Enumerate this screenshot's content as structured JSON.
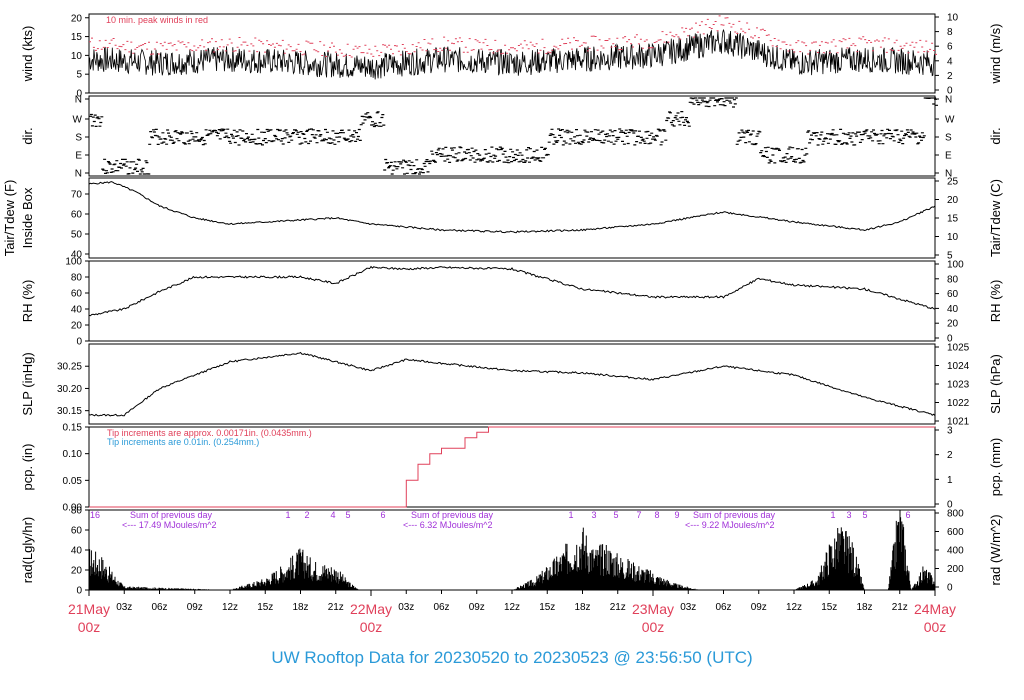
{
  "colors": {
    "red": "#e0405a",
    "blue": "#2b9ad8",
    "purple": "#a030d8",
    "black": "#000000"
  },
  "footer": {
    "prefix": "UW Rooftop Data for",
    "start": "20230520",
    "to": "to",
    "end": "20230523",
    "at": "@",
    "time": "23:56:50",
    "tz": "(UTC)"
  },
  "chart_data": [
    {
      "type": "line",
      "id": "wind",
      "ylabel": "wind (kts)",
      "ylabel2": "wind (m/s)",
      "ylim": [
        0,
        21
      ],
      "yticks": [
        0,
        5,
        10,
        15,
        20
      ],
      "y2ticks": [
        "0",
        "2",
        "4",
        "6",
        "8",
        "10"
      ],
      "annotations": [
        "10 min. peak winds in red"
      ],
      "series": [
        {
          "x_hours": [
            0,
            6,
            12,
            18,
            24,
            30,
            36,
            42,
            48,
            54,
            60,
            66,
            72
          ],
          "values": [
            9,
            8,
            9,
            8,
            7,
            9,
            8,
            9,
            10,
            14,
            8,
            9,
            8
          ]
        },
        {
          "x_hours": [
            0,
            6,
            12,
            18,
            24,
            30,
            36,
            42,
            48,
            54,
            60,
            66,
            72
          ],
          "values": [
            13,
            12,
            13,
            12,
            11,
            13,
            12,
            13,
            14,
            19,
            12,
            13,
            12
          ]
        }
      ]
    },
    {
      "type": "scatter",
      "id": "dir",
      "ylabel": "dir.",
      "ylabel2": "dir.",
      "yticks": [
        "N",
        "E",
        "S",
        "W",
        "N"
      ],
      "series": [
        {
          "x_hours": [
            0,
            2,
            4,
            6,
            8,
            10,
            12,
            14,
            16,
            18,
            20,
            22,
            24,
            26,
            28,
            30,
            32,
            34,
            36,
            38,
            40,
            42,
            44,
            46,
            48,
            50,
            52,
            54,
            56,
            58,
            60,
            62,
            64,
            66,
            68,
            70,
            72
          ],
          "values": [
            "W",
            "N",
            "N",
            "S",
            "S",
            "S",
            "S",
            "S",
            "S",
            "S",
            "S",
            "S",
            "W",
            "N",
            "N",
            "E",
            "E",
            "E",
            "E",
            "E",
            "S",
            "S",
            "S",
            "S",
            "S",
            "W",
            "N",
            "N",
            "S",
            "E",
            "E",
            "S",
            "S",
            "S",
            "S",
            "S",
            "N"
          ]
        }
      ]
    },
    {
      "type": "line",
      "id": "temp",
      "ylabel": "Inside Box",
      "ylabel_outer": "Tair/Tdew (F)",
      "ylabel2": "Tair/Tdew (C)",
      "ylim": [
        38,
        78
      ],
      "yticks": [
        40,
        50,
        60,
        70
      ],
      "y2ticks": [
        "5",
        "10",
        "15",
        "20",
        "25"
      ],
      "series": [
        {
          "x_hours": [
            0,
            2,
            4,
            6,
            9,
            12,
            18,
            21,
            24,
            30,
            36,
            42,
            48,
            54,
            60,
            66,
            69,
            72
          ],
          "values": [
            75,
            76,
            71,
            64,
            58,
            55,
            57,
            58,
            55,
            52,
            51,
            52,
            55,
            61,
            56,
            52,
            56,
            64
          ]
        }
      ]
    },
    {
      "type": "line",
      "id": "rh",
      "ylabel": "RH (%)",
      "ylabel2": "RH (%)",
      "ylim": [
        0,
        100
      ],
      "yticks": [
        0,
        20,
        40,
        60,
        80,
        100
      ],
      "y2ticks": [
        "0",
        "20",
        "40",
        "60",
        "80",
        "100"
      ],
      "series": [
        {
          "x_hours": [
            0,
            3,
            6,
            9,
            12,
            18,
            21,
            24,
            27,
            30,
            36,
            42,
            48,
            54,
            57,
            60,
            66,
            72
          ],
          "values": [
            32,
            40,
            62,
            80,
            80,
            80,
            72,
            92,
            90,
            92,
            90,
            65,
            55,
            55,
            78,
            70,
            65,
            40
          ]
        }
      ]
    },
    {
      "type": "line",
      "id": "slp",
      "ylabel": "SLP (inHg)",
      "ylabel2": "SLP (hPa)",
      "ylim": [
        30.12,
        30.3
      ],
      "yticks": [
        30.15,
        30.2,
        30.25
      ],
      "y2ticks": [
        "1021",
        "1022",
        "1023",
        "1024",
        "1025"
      ],
      "series": [
        {
          "x_hours": [
            0,
            3,
            6,
            12,
            18,
            24,
            27,
            36,
            42,
            48,
            54,
            60,
            66,
            72
          ],
          "values": [
            30.14,
            30.14,
            30.2,
            30.26,
            30.28,
            30.24,
            30.265,
            30.24,
            30.235,
            30.22,
            30.25,
            30.23,
            30.18,
            30.14
          ]
        }
      ]
    },
    {
      "type": "line",
      "id": "pcp",
      "ylabel": "pcp. (in)",
      "ylabel2": "pcp. (mm)",
      "ylim": [
        0,
        0.15
      ],
      "yticks": [
        0.0,
        0.05,
        0.1,
        0.15
      ],
      "y2ticks": [
        "0",
        "1",
        "2",
        "3"
      ],
      "annotations": [
        "Tip increments are approx. 0.00171in. (0.0435mm.)",
        "Tip increments are 0.01in. (0.254mm.)"
      ],
      "series": [
        {
          "x_hours": [
            0,
            26,
            27,
            28,
            29,
            30,
            31,
            32,
            33,
            34,
            72
          ],
          "values": [
            0.0,
            0.0,
            0.05,
            0.08,
            0.1,
            0.11,
            0.11,
            0.13,
            0.14,
            0.15,
            0.15
          ]
        }
      ]
    },
    {
      "type": "area",
      "id": "rad",
      "ylabel": "rad(Lgly/hr)",
      "ylabel2": "rad (W/m^2)",
      "ylim": [
        0,
        80
      ],
      "yticks": [
        0,
        20,
        40,
        60,
        80
      ],
      "y2ticks": [
        "0",
        "200",
        "400",
        "600",
        "800"
      ],
      "annotations": [
        "Sum of previous day",
        "<--- 17.49 MJoules/m^2",
        "Sum of previous day",
        "<--- 6.32 MJoules/m^2",
        "Sum of previous day",
        "<--- 9.22 MJoules/m^2"
      ],
      "hour_marks": [
        "16",
        "1",
        "2",
        "4",
        "5",
        "6",
        "1",
        "3",
        "5",
        "7",
        "8",
        "9",
        "1",
        "3",
        "5",
        "6"
      ],
      "series": [
        {
          "x_hours": [
            0,
            1,
            2,
            3,
            12,
            15,
            17,
            18,
            19,
            21,
            22,
            23,
            24,
            36,
            38,
            40,
            42,
            43,
            44,
            45,
            46,
            48,
            50,
            52,
            60,
            62,
            63,
            64,
            65,
            66,
            67,
            68,
            69,
            70,
            71,
            72
          ],
          "values": [
            35,
            30,
            15,
            3,
            0,
            10,
            25,
            35,
            25,
            20,
            8,
            0,
            0,
            0,
            10,
            30,
            55,
            35,
            40,
            30,
            25,
            15,
            5,
            0,
            0,
            10,
            40,
            55,
            40,
            0,
            0,
            0,
            80,
            0,
            20,
            10
          ]
        }
      ]
    }
  ],
  "x_axis": {
    "small": [
      "03z",
      "06z",
      "09z",
      "12z",
      "15z",
      "18z",
      "21z",
      "03z",
      "06z",
      "09z",
      "12z",
      "15z",
      "18z",
      "21z",
      "03z",
      "06z",
      "09z",
      "12z",
      "15z",
      "18z",
      "21z"
    ],
    "big": [
      {
        "date": "21May",
        "hour": "00z"
      },
      {
        "date": "22May",
        "hour": "00z"
      },
      {
        "date": "23May",
        "hour": "00z"
      },
      {
        "date": "24May",
        "hour": "00z"
      }
    ]
  }
}
